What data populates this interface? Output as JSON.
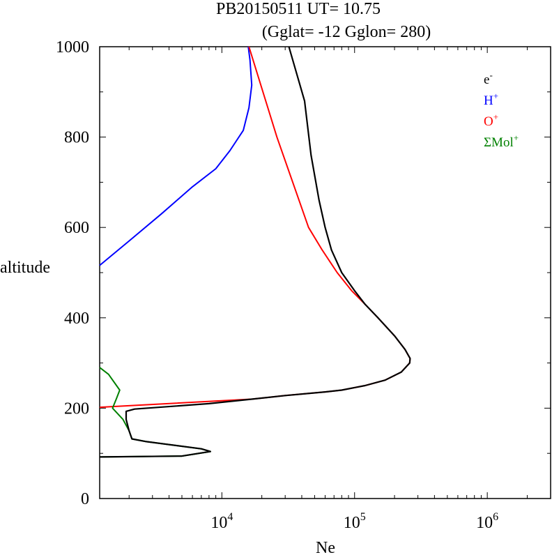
{
  "chart_data": {
    "type": "line",
    "title": "PB20150511   UT=  10.75",
    "subtitle": "(Gglat= -12   Gglon=  280)",
    "xlabel": "Ne",
    "ylabel": "altitude",
    "x_scale": "log",
    "xlim": [
      1200,
      3000000
    ],
    "ylim": [
      0,
      1000
    ],
    "x_ticks": [
      {
        "value": 10000,
        "base": "10",
        "exp": "4"
      },
      {
        "value": 100000,
        "base": "10",
        "exp": "5"
      },
      {
        "value": 1000000,
        "base": "10",
        "exp": "6"
      }
    ],
    "y_ticks": [
      0,
      200,
      400,
      600,
      800,
      1000
    ],
    "grid": false,
    "legend_position": "top-right",
    "series": [
      {
        "name": "e⁻",
        "label_base": "e",
        "label_sup": "-",
        "color": "#000000",
        "points": [
          [
            1200,
            92
          ],
          [
            5000,
            94
          ],
          [
            8200,
            104
          ],
          [
            7000,
            110
          ],
          [
            2700,
            126
          ],
          [
            2100,
            132
          ],
          [
            2000,
            150
          ],
          [
            1900,
            175
          ],
          [
            1900,
            193
          ],
          [
            2200,
            198
          ],
          [
            8000,
            210
          ],
          [
            17000,
            220
          ],
          [
            30000,
            228
          ],
          [
            60000,
            236
          ],
          [
            80000,
            240
          ],
          [
            120000,
            250
          ],
          [
            170000,
            262
          ],
          [
            225000,
            280
          ],
          [
            260000,
            300
          ],
          [
            262000,
            310
          ],
          [
            240000,
            330
          ],
          [
            200000,
            360
          ],
          [
            150000,
            400
          ],
          [
            120000,
            430
          ],
          [
            100000,
            460
          ],
          [
            80000,
            500
          ],
          [
            67000,
            550
          ],
          [
            60000,
            600
          ],
          [
            54000,
            660
          ],
          [
            47000,
            760
          ],
          [
            42000,
            880
          ],
          [
            32000,
            1000
          ]
        ]
      },
      {
        "name": "H⁺",
        "label_base": "H",
        "label_sup": "+",
        "color": "#0000ff",
        "points": [
          [
            1200,
            516
          ],
          [
            2000,
            570
          ],
          [
            3500,
            630
          ],
          [
            6000,
            690
          ],
          [
            9000,
            730
          ],
          [
            11500,
            770
          ],
          [
            14500,
            815
          ],
          [
            16000,
            865
          ],
          [
            16800,
            915
          ],
          [
            16300,
            970
          ],
          [
            15800,
            1000
          ]
        ]
      },
      {
        "name": "O⁺",
        "label_base": "O",
        "label_sup": "+",
        "color": "#ff0000",
        "points": [
          [
            1200,
            202
          ],
          [
            17000,
            220
          ],
          [
            30000,
            228
          ],
          [
            60000,
            236
          ],
          [
            80000,
            240
          ],
          [
            120000,
            250
          ],
          [
            170000,
            262
          ],
          [
            225000,
            280
          ],
          [
            260000,
            300
          ],
          [
            262000,
            310
          ],
          [
            240000,
            330
          ],
          [
            200000,
            360
          ],
          [
            150000,
            400
          ],
          [
            120000,
            430
          ],
          [
            95000,
            460
          ],
          [
            74000,
            500
          ],
          [
            57000,
            550
          ],
          [
            45000,
            600
          ],
          [
            26000,
            800
          ],
          [
            16000,
            1000
          ]
        ]
      },
      {
        "name": "ΣMol⁺",
        "label_base": "ΣMol",
        "label_sup": "+",
        "color": "#008000",
        "points": [
          [
            1200,
            92
          ],
          [
            5000,
            94
          ],
          [
            8200,
            104
          ],
          [
            7000,
            110
          ],
          [
            2700,
            126
          ],
          [
            2100,
            132
          ],
          [
            2000,
            150
          ],
          [
            1800,
            175
          ],
          [
            1500,
            200
          ],
          [
            1600,
            220
          ],
          [
            1700,
            240
          ],
          [
            1400,
            275
          ],
          [
            1200,
            290
          ]
        ]
      }
    ]
  }
}
